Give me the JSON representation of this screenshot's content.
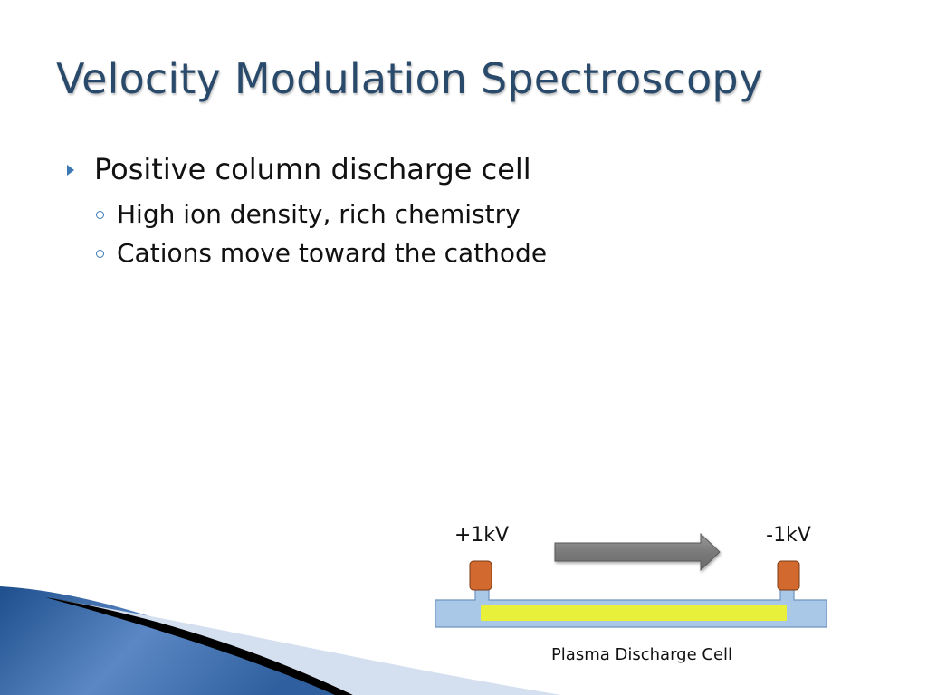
{
  "slide": {
    "title": "Velocity Modulation Spectroscopy",
    "bullets": [
      {
        "text": "Positive column discharge cell",
        "sub": [
          "High ion density, rich chemistry",
          "Cations move toward the cathode"
        ]
      }
    ]
  },
  "diagram": {
    "left_voltage": "+1kV",
    "right_voltage": "-1kV",
    "caption": "Plasma Discharge Cell"
  },
  "colors": {
    "title": "#2a4a6b",
    "bullet_accent": "#3b78b5",
    "electrode": "#d2692f",
    "cell_tube": "#a9c8e8",
    "plasma": "#e8f03a",
    "arrow": "#808080",
    "swoosh_blue": "#2f5f9e"
  }
}
